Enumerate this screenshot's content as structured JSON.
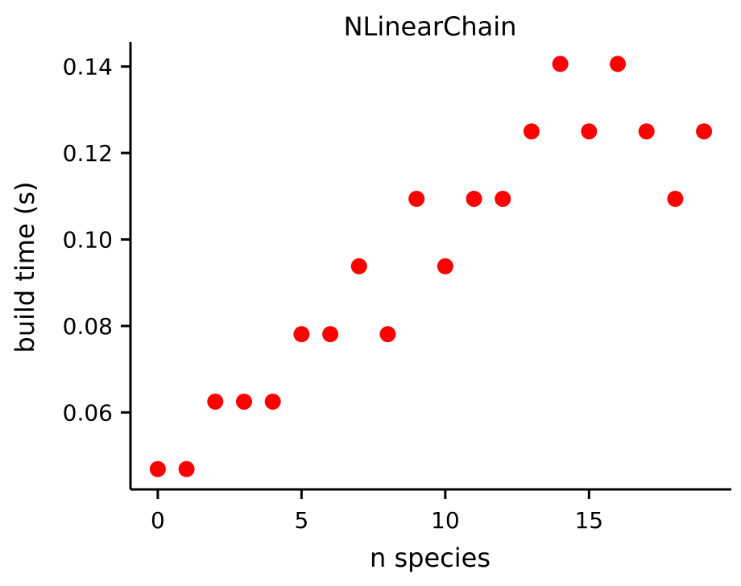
{
  "chart_data": {
    "type": "scatter",
    "title": "NLinearChain",
    "xlabel": "n species",
    "ylabel": "build time (s)",
    "xlim": [
      -0.95,
      19.95
    ],
    "ylim": [
      0.0422,
      0.1457
    ],
    "xticks": [
      0,
      5,
      10,
      15
    ],
    "xtick_labels": [
      "0",
      "5",
      "10",
      "15"
    ],
    "yticks": [
      0.06,
      0.08,
      0.1,
      0.12,
      0.14
    ],
    "ytick_labels": [
      "0.06",
      "0.08",
      "0.10",
      "0.12",
      "0.14"
    ],
    "grid": false,
    "series": [
      {
        "color": "#ff0000",
        "x": [
          0,
          1,
          2,
          3,
          4,
          5,
          6,
          7,
          8,
          9,
          10,
          11,
          12,
          13,
          14,
          15,
          16,
          17,
          18,
          19
        ],
        "y": [
          0.0469,
          0.0469,
          0.0625,
          0.0625,
          0.0625,
          0.0781,
          0.0781,
          0.0938,
          0.0781,
          0.1094,
          0.0938,
          0.1094,
          0.1094,
          0.125,
          0.1406,
          0.125,
          0.1406,
          0.125,
          0.1094,
          0.125
        ]
      }
    ]
  }
}
